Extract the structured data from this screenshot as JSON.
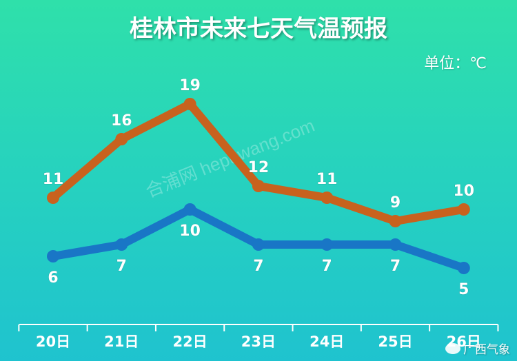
{
  "title": "桂林市未来七天气温预报",
  "unit": "单位：℃",
  "watermark": "合浦网 hepuwang.com",
  "source": "广西气象",
  "colors": {
    "high": "#c8621e",
    "low": "#1976c6",
    "text": "#ffffff"
  },
  "chart_data": {
    "type": "line",
    "title": "桂林市未来七天气温预报",
    "categories": [
      "20日",
      "21日",
      "22日",
      "23日",
      "24日",
      "25日",
      "26日"
    ],
    "series": [
      {
        "values": [
          11,
          16,
          19,
          12,
          11,
          9,
          10
        ]
      },
      {
        "values": [
          6,
          7,
          10,
          7,
          7,
          7,
          5
        ]
      }
    ],
    "ylim": [
      2,
      22
    ],
    "grid": false,
    "legend": "none"
  }
}
